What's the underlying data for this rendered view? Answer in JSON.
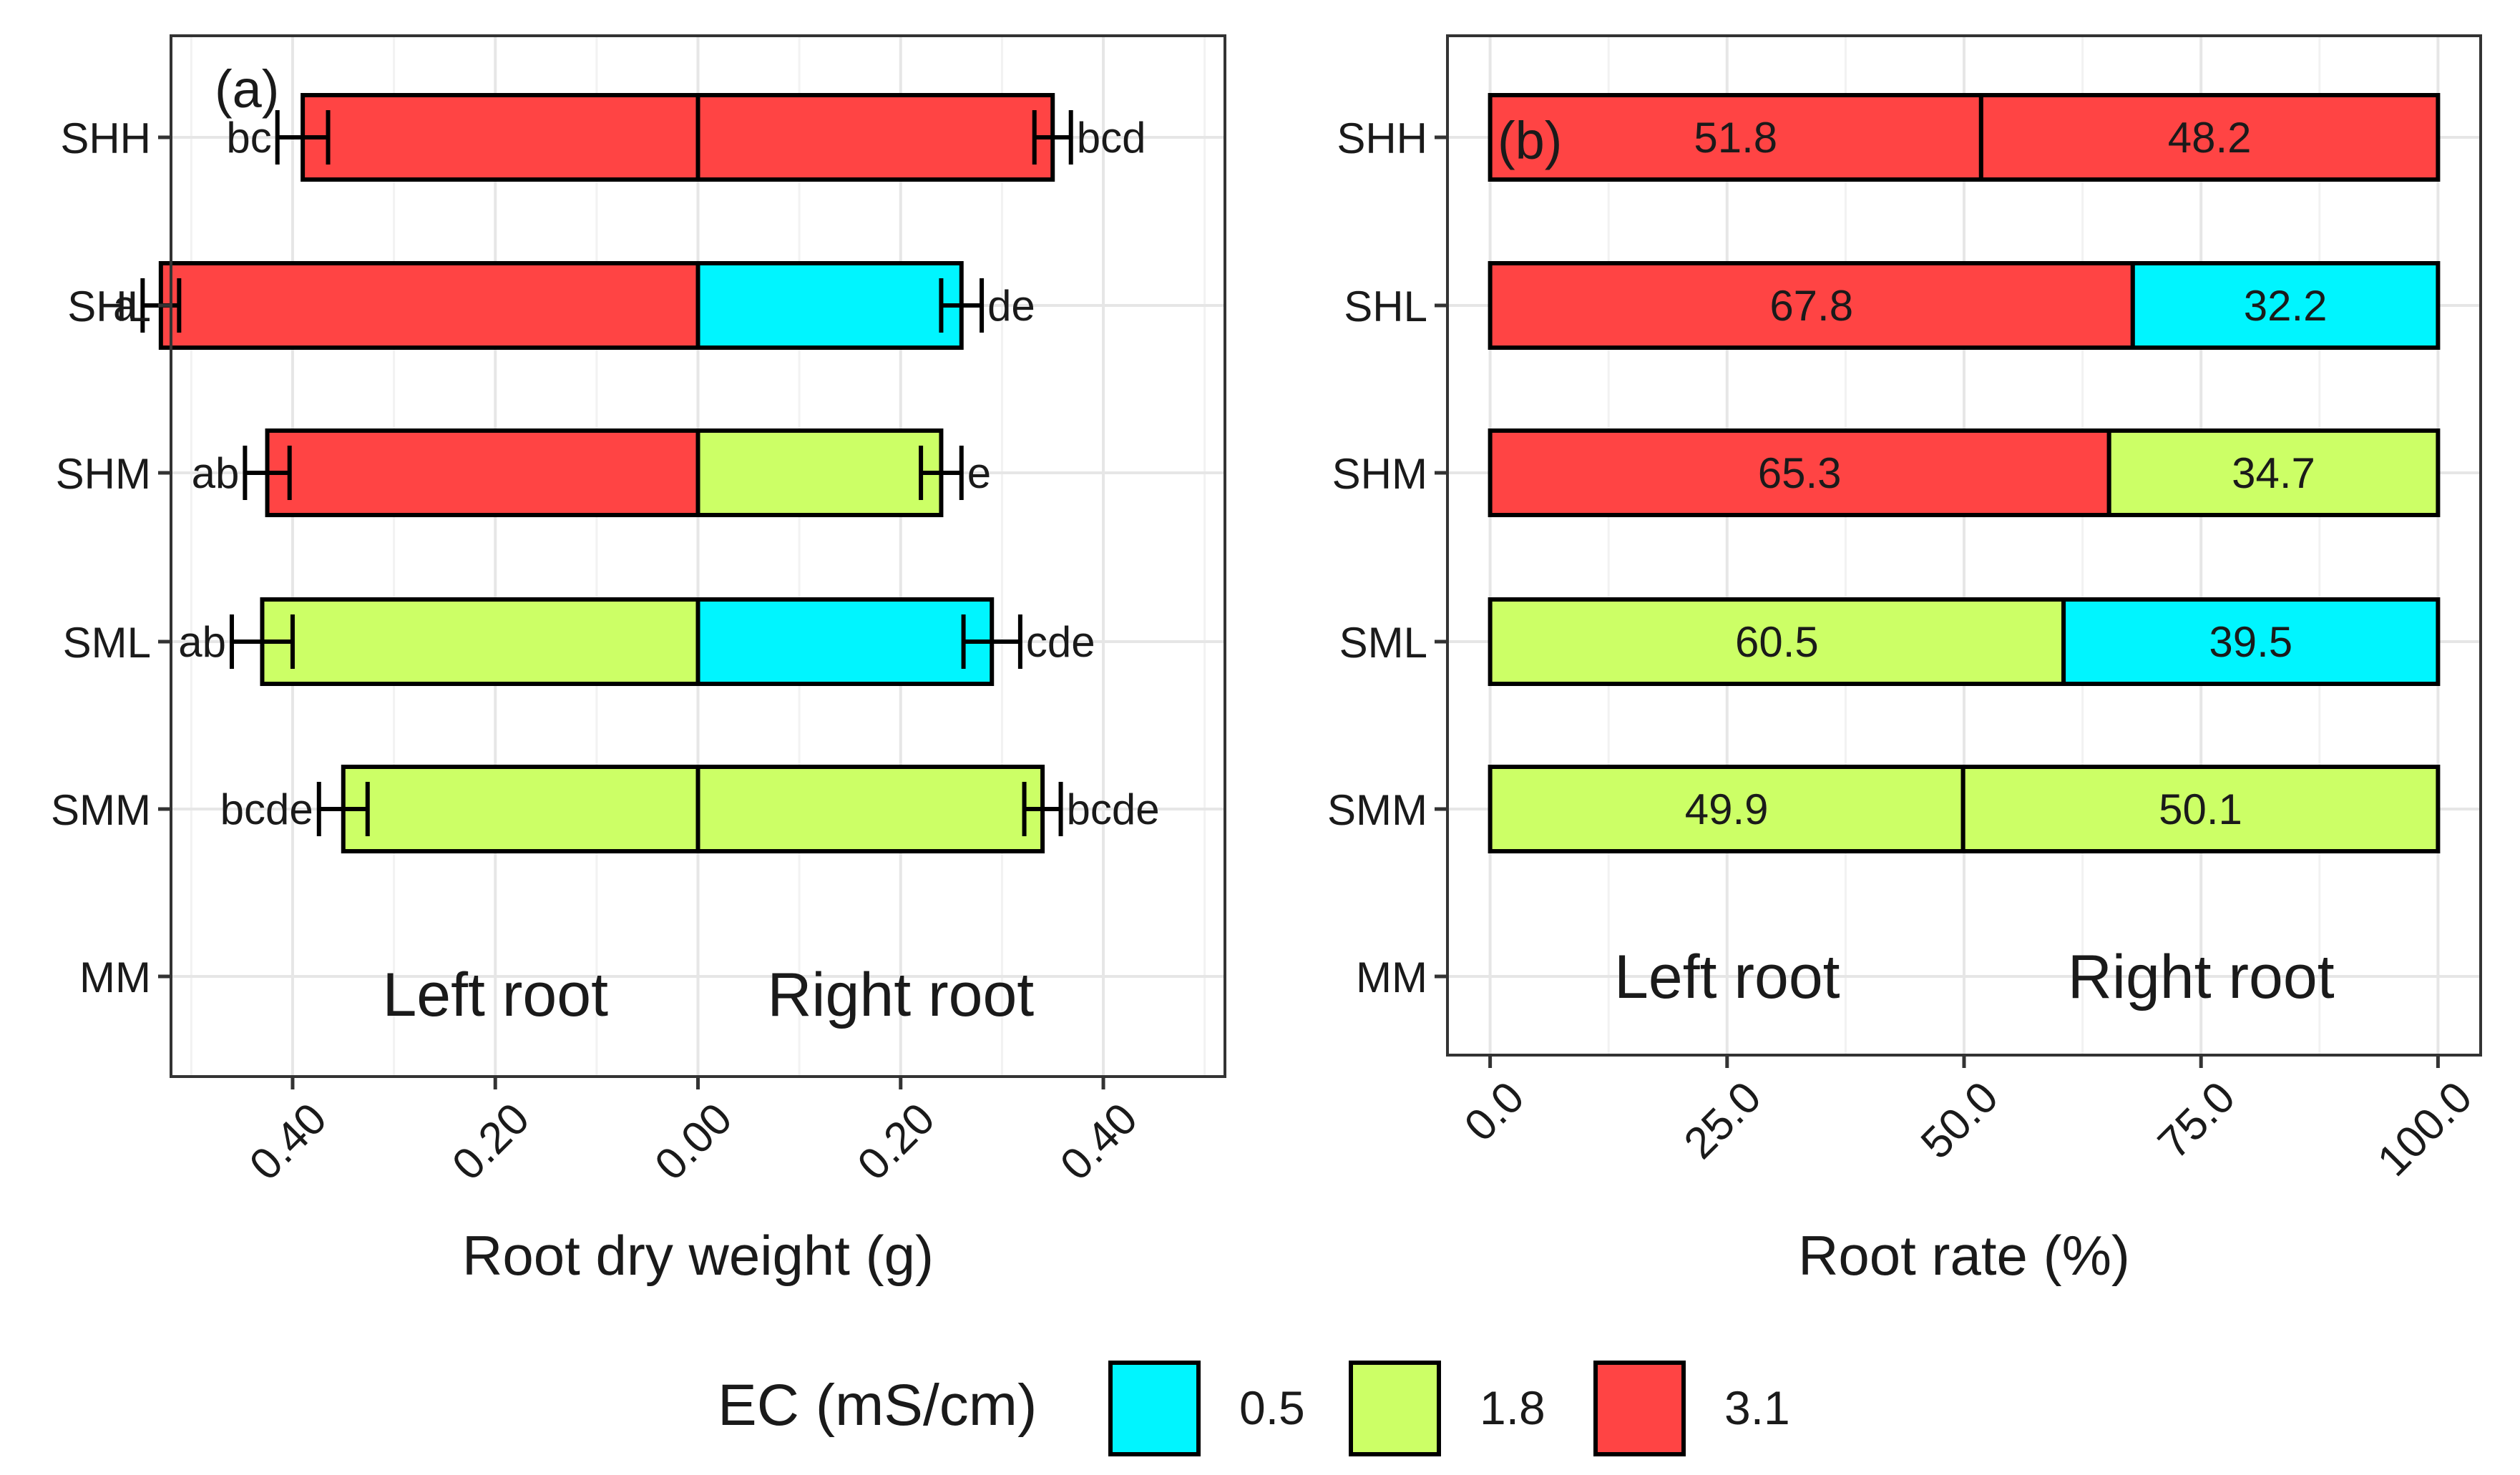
{
  "legend": {
    "title": "EC (mS/cm)",
    "items": [
      {
        "label": "0.5",
        "color": "#00f5ff"
      },
      {
        "label": "1.8",
        "color": "#ccff66"
      },
      {
        "label": "3.1",
        "color": "#ff4444"
      }
    ]
  },
  "chart_data": [
    {
      "type": "bar",
      "orientation": "horizontal",
      "panel_label": "(a)",
      "xlabel": "Root dry weight (g)",
      "x_range": [
        -0.52,
        0.52
      ],
      "x_tick_values": [
        -0.4,
        -0.2,
        0.0,
        0.2,
        0.4
      ],
      "x_tick_labels": [
        "0.40",
        "0.20",
        "0.00",
        "0.20",
        "0.40"
      ],
      "categories": [
        "SHH",
        "SHL",
        "SHM",
        "SML",
        "SMM",
        "MM"
      ],
      "side_labels": {
        "left": "Left root",
        "right": "Right root"
      },
      "rows": [
        {
          "category": "SHH",
          "left": 0.39,
          "left_err": 0.025,
          "left_color": "#ff4444",
          "left_sig": "bc",
          "right": 0.35,
          "right_err": 0.018,
          "right_color": "#ff4444",
          "right_sig": "bcd"
        },
        {
          "category": "SHL",
          "left": 0.53,
          "left_err": 0.018,
          "left_color": "#ff4444",
          "left_sig": "a",
          "right": 0.26,
          "right_err": 0.02,
          "right_color": "#00f5ff",
          "right_sig": "de"
        },
        {
          "category": "SHM",
          "left": 0.425,
          "left_err": 0.022,
          "left_color": "#ff4444",
          "left_sig": "ab",
          "right": 0.24,
          "right_err": 0.02,
          "right_color": "#ccff66",
          "right_sig": "e"
        },
        {
          "category": "SML",
          "left": 0.43,
          "left_err": 0.03,
          "left_color": "#ccff66",
          "left_sig": "ab",
          "right": 0.29,
          "right_err": 0.028,
          "right_color": "#00f5ff",
          "right_sig": "cde"
        },
        {
          "category": "SMM",
          "left": 0.35,
          "left_err": 0.024,
          "left_color": "#ccff66",
          "left_sig": "bcde",
          "right": 0.34,
          "right_err": 0.018,
          "right_color": "#ccff66",
          "right_sig": "bcde"
        }
      ]
    },
    {
      "type": "bar",
      "orientation": "horizontal",
      "stacked": true,
      "panel_label": "(b)",
      "xlabel": "Root rate (%)",
      "x_range": [
        -4.5,
        104.5
      ],
      "x_tick_values": [
        0,
        25,
        50,
        75,
        100
      ],
      "x_tick_labels": [
        "0.0",
        "25.0",
        "50.0",
        "75.0",
        "100.0"
      ],
      "categories": [
        "SHH",
        "SHL",
        "SHM",
        "SML",
        "SMM",
        "MM"
      ],
      "side_labels": {
        "left": "Left root",
        "right": "Right root"
      },
      "rows": [
        {
          "category": "SHH",
          "left": 51.8,
          "left_label": "51.8",
          "left_color": "#ff4444",
          "right": 48.2,
          "right_label": "48.2",
          "right_color": "#ff4444"
        },
        {
          "category": "SHL",
          "left": 67.8,
          "left_label": "67.8",
          "left_color": "#ff4444",
          "right": 32.2,
          "right_label": "32.2",
          "right_color": "#00f5ff"
        },
        {
          "category": "SHM",
          "left": 65.3,
          "left_label": "65.3",
          "left_color": "#ff4444",
          "right": 34.7,
          "right_label": "34.7",
          "right_color": "#ccff66"
        },
        {
          "category": "SML",
          "left": 60.5,
          "left_label": "60.5",
          "left_color": "#ccff66",
          "right": 39.5,
          "right_label": "39.5",
          "right_color": "#00f5ff"
        },
        {
          "category": "SMM",
          "left": 49.9,
          "left_label": "49.9",
          "left_color": "#ccff66",
          "right": 50.1,
          "right_label": "50.1",
          "right_color": "#ccff66"
        }
      ]
    }
  ]
}
